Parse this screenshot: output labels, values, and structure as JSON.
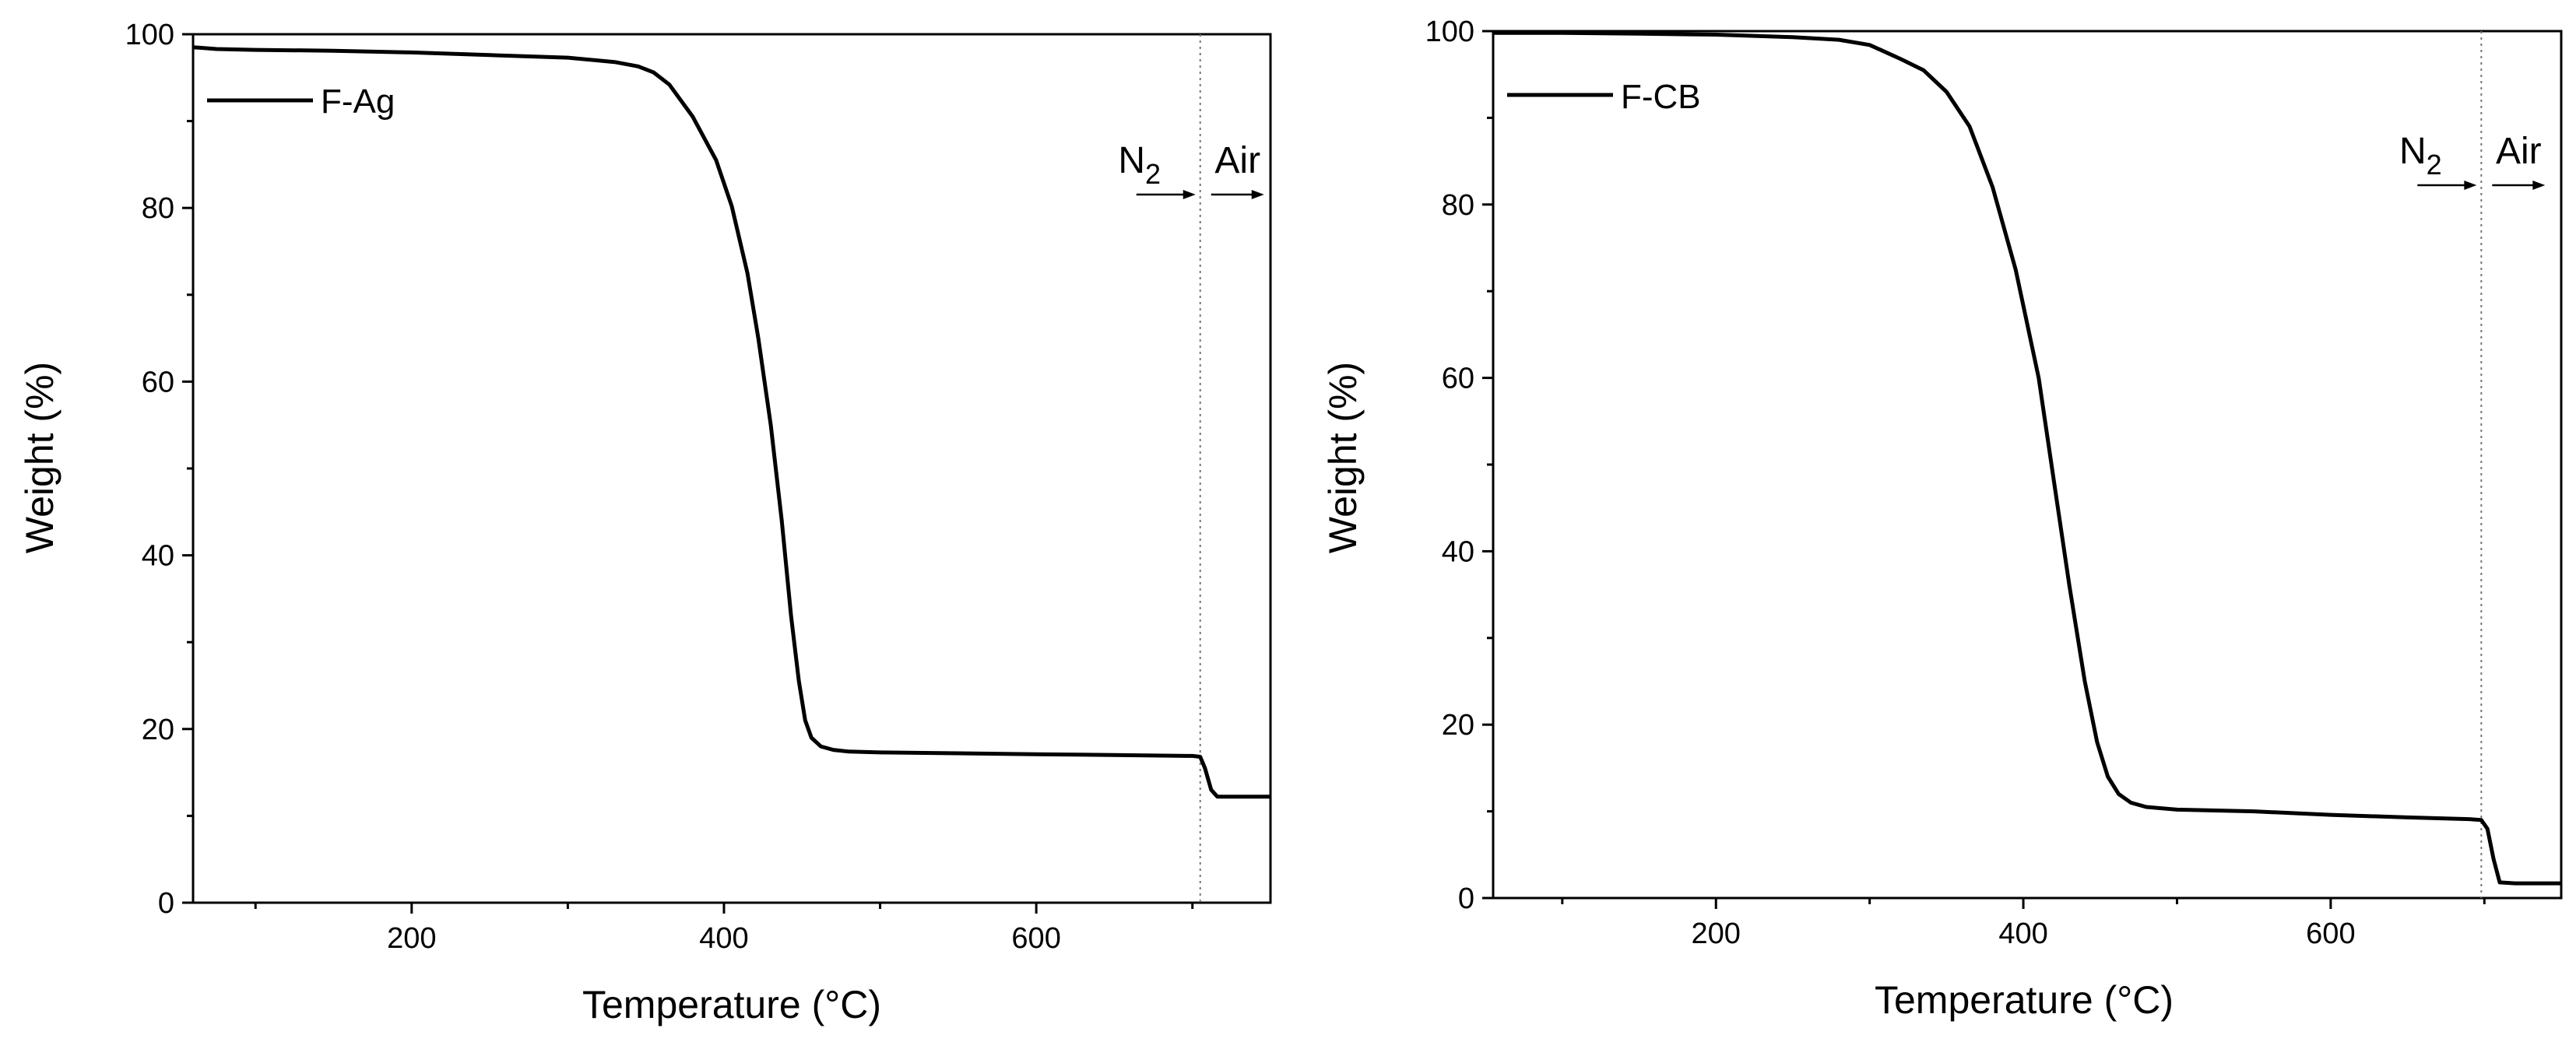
{
  "chart_data": [
    {
      "type": "line",
      "xlabel": "Temperature (°C)",
      "ylabel": "Weight (%)",
      "xlim": [
        60,
        750
      ],
      "ylim": [
        0,
        100
      ],
      "xticks": [
        200,
        400,
        600
      ],
      "yticks": [
        0,
        20,
        40,
        60,
        80,
        100
      ],
      "grid": false,
      "legend_position": "top-left",
      "atmosphere_switch_x": 705,
      "annotations": {
        "n2": "N",
        "n2_sub": "2",
        "air": "Air"
      },
      "series": [
        {
          "name": "F-Ag",
          "color": "#000000",
          "x": [
            60,
            75,
            100,
            150,
            200,
            250,
            300,
            330,
            345,
            355,
            365,
            380,
            395,
            405,
            415,
            422,
            430,
            437,
            443,
            448,
            452,
            456,
            462,
            470,
            480,
            500,
            550,
            600,
            650,
            700,
            705,
            708,
            712,
            716,
            730,
            750
          ],
          "y": [
            98.5,
            98.3,
            98.2,
            98.1,
            97.9,
            97.6,
            97.3,
            96.8,
            96.3,
            95.6,
            94.2,
            90.5,
            85.5,
            80.2,
            72.5,
            65.0,
            55.0,
            44.0,
            33.0,
            25.5,
            21.0,
            19.0,
            18.0,
            17.6,
            17.4,
            17.3,
            17.2,
            17.1,
            17.0,
            16.9,
            16.8,
            15.5,
            13.0,
            12.2,
            12.2,
            12.2
          ]
        }
      ]
    },
    {
      "type": "line",
      "xlabel": "Temperature (°C)",
      "ylabel": "Weight (%)",
      "xlim": [
        55,
        750
      ],
      "ylim": [
        0,
        100
      ],
      "xticks": [
        200,
        400,
        600
      ],
      "yticks": [
        0,
        20,
        40,
        60,
        80,
        100
      ],
      "grid": false,
      "legend_position": "top-left",
      "atmosphere_switch_x": 698,
      "annotations": {
        "n2": "N",
        "n2_sub": "2",
        "air": "Air"
      },
      "series": [
        {
          "name": "F-CB",
          "color": "#000000",
          "x": [
            55,
            100,
            150,
            200,
            250,
            280,
            300,
            310,
            320,
            335,
            350,
            365,
            380,
            395,
            410,
            420,
            430,
            440,
            448,
            455,
            462,
            470,
            480,
            500,
            550,
            600,
            650,
            690,
            698,
            702,
            706,
            710,
            720,
            750
          ],
          "y": [
            99.8,
            99.8,
            99.7,
            99.6,
            99.3,
            99.0,
            98.4,
            97.6,
            96.8,
            95.5,
            93.0,
            89.0,
            82.0,
            72.5,
            60.0,
            48.0,
            36.0,
            25.0,
            18.0,
            14.0,
            12.0,
            11.0,
            10.5,
            10.2,
            10.0,
            9.6,
            9.3,
            9.1,
            9.0,
            8.0,
            4.5,
            1.8,
            1.7,
            1.7
          ]
        }
      ]
    }
  ]
}
